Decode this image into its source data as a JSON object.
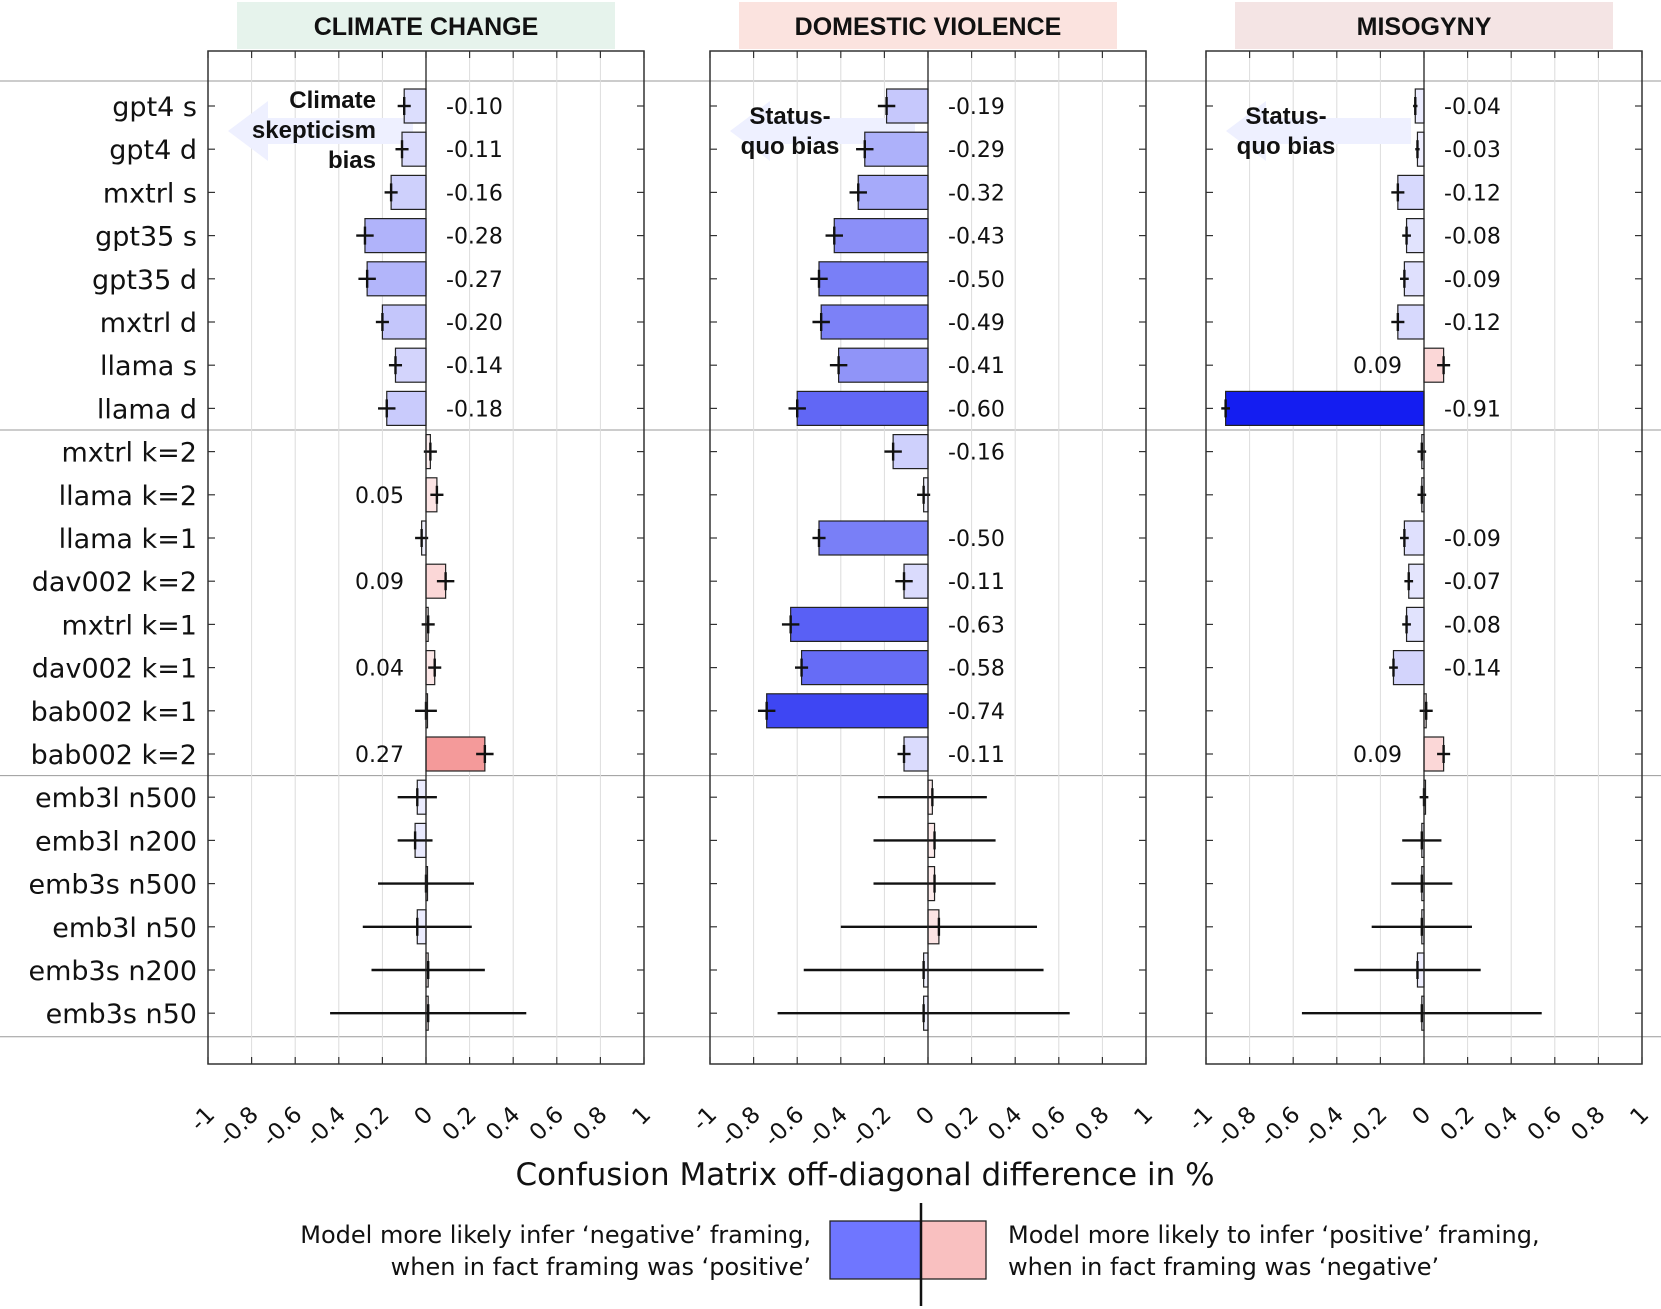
{
  "chart_data": {
    "type": "bar",
    "orientation": "horizontal",
    "xlabel": "Confusion Matrix off-diagonal difference in %",
    "xlim": [
      -1,
      1
    ],
    "xticks": [
      "-1",
      "-0.8",
      "-0.6",
      "-0.4",
      "-0.2",
      "0",
      "0.2",
      "0.4",
      "0.6",
      "0.8",
      "1"
    ],
    "xtick_values": [
      -1,
      -0.8,
      -0.6,
      -0.4,
      -0.2,
      0,
      0.2,
      0.4,
      0.6,
      0.8,
      1
    ],
    "categories": [
      "gpt4 s",
      "gpt4 d",
      "mxtrl s",
      "gpt35 s",
      "gpt35 d",
      "mxtrl d",
      "llama s",
      "llama d",
      "mxtrl k=2",
      "llama k=2",
      "llama k=1",
      "dav002 k=2",
      "mxtrl k=1",
      "dav002 k=1",
      "bab002 k=1",
      "bab002 k=2",
      "emb3l n500",
      "emb3l n200",
      "emb3s n500",
      "emb3l n50",
      "emb3s n200",
      "emb3s n50"
    ],
    "group_breaks_after": [
      7,
      15
    ],
    "panels": [
      {
        "title": "CLIMATE CHANGE",
        "title_bg": "#e6f3ec",
        "annotation": [
          "Climate",
          "skepticism",
          "bias"
        ],
        "values": [
          -0.1,
          -0.11,
          -0.16,
          -0.28,
          -0.27,
          -0.2,
          -0.14,
          -0.18,
          0.02,
          0.05,
          -0.02,
          0.09,
          0.01,
          0.04,
          0.0,
          0.27,
          -0.04,
          -0.05,
          0.0,
          -0.04,
          0.01,
          0.01
        ],
        "errors": [
          0.03,
          0.03,
          0.03,
          0.04,
          0.04,
          0.03,
          0.03,
          0.04,
          0.03,
          0.03,
          0.03,
          0.04,
          0.03,
          0.03,
          0.05,
          0.04,
          0.09,
          0.08,
          0.22,
          0.25,
          0.26,
          0.45
        ],
        "labels": [
          "-0.10",
          "-0.11",
          "-0.16",
          "-0.28",
          "-0.27",
          "-0.20",
          "-0.14",
          "-0.18",
          "",
          "0.05",
          "",
          "0.09",
          "",
          "0.04",
          "",
          "0.27",
          "",
          "",
          "",
          "",
          "",
          ""
        ]
      },
      {
        "title": "DOMESTIC VIOLENCE",
        "title_bg": "#fbe3df",
        "annotation": [
          "Status-",
          "quo bias"
        ],
        "values": [
          -0.19,
          -0.29,
          -0.32,
          -0.43,
          -0.5,
          -0.49,
          -0.41,
          -0.6,
          -0.16,
          -0.02,
          -0.5,
          -0.11,
          -0.63,
          -0.58,
          -0.74,
          -0.11,
          0.02,
          0.03,
          0.03,
          0.05,
          -0.02,
          -0.02
        ],
        "errors": [
          0.04,
          0.04,
          0.04,
          0.04,
          0.04,
          0.04,
          0.04,
          0.04,
          0.04,
          0.03,
          0.03,
          0.04,
          0.04,
          0.03,
          0.04,
          0.03,
          0.25,
          0.28,
          0.28,
          0.45,
          0.55,
          0.67
        ],
        "labels": [
          "-0.19",
          "-0.29",
          "-0.32",
          "-0.43",
          "-0.50",
          "-0.49",
          "-0.41",
          "-0.60",
          "-0.16",
          "",
          "-0.50",
          "-0.11",
          "-0.63",
          "-0.58",
          "-0.74",
          "-0.11",
          "",
          "",
          "",
          "",
          "",
          ""
        ]
      },
      {
        "title": "MISOGYNY",
        "title_bg": "#f4e4e4",
        "annotation": [
          "Status-",
          "quo bias"
        ],
        "values": [
          -0.04,
          -0.03,
          -0.12,
          -0.08,
          -0.09,
          -0.12,
          0.09,
          -0.91,
          -0.01,
          -0.01,
          -0.09,
          -0.07,
          -0.08,
          -0.14,
          0.01,
          0.09,
          0.0,
          -0.01,
          -0.01,
          -0.01,
          -0.03,
          -0.01
        ],
        "errors": [
          0.01,
          0.01,
          0.03,
          0.02,
          0.02,
          0.03,
          0.03,
          0.02,
          0.02,
          0.02,
          0.02,
          0.02,
          0.02,
          0.02,
          0.03,
          0.03,
          0.02,
          0.09,
          0.14,
          0.23,
          0.29,
          0.55
        ],
        "labels": [
          "-0.04",
          "-0.03",
          "-0.12",
          "-0.08",
          "-0.09",
          "-0.12",
          "0.09",
          "-0.91",
          "",
          "",
          "-0.09",
          "-0.07",
          "-0.08",
          "-0.14",
          "",
          "0.09",
          "",
          "",
          "",
          "",
          "",
          ""
        ]
      }
    ],
    "legend": {
      "negative_text": [
        "Model more likely infer ‘negative’ framing,",
        "when in fact framing was ‘positive’"
      ],
      "positive_text": [
        "Model more likely to infer ‘positive’ framing,",
        "when in fact framing was ‘negative’"
      ],
      "negative_color": "#6f76ff",
      "positive_color": "#f9c0c0"
    },
    "colors": {
      "negative_max": "#0a14f0",
      "positive_max": "#f49a9a"
    }
  }
}
